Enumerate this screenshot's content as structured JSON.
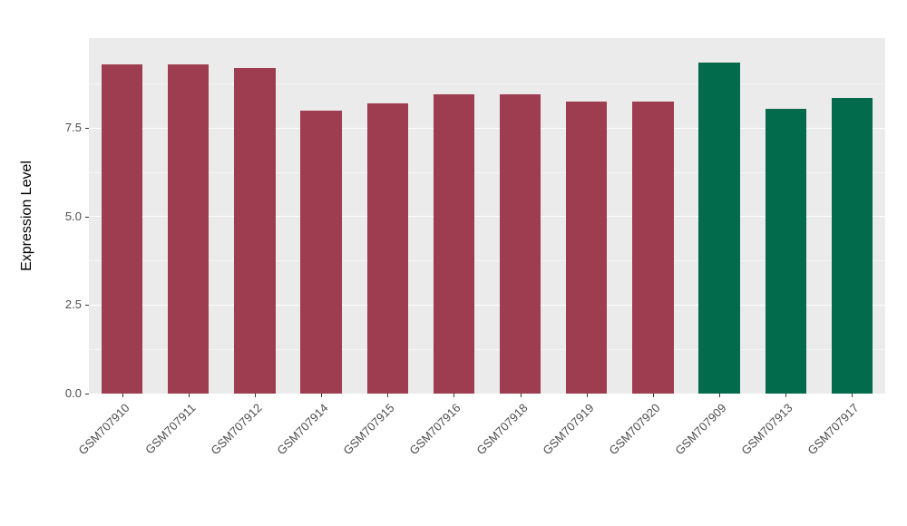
{
  "chart_data": {
    "type": "bar",
    "title": "",
    "xlabel": "",
    "ylabel": "Expression Level",
    "ylim": [
      0,
      10.05
    ],
    "yticks": [
      {
        "value": 0,
        "label": "0.0"
      },
      {
        "value": 2.5,
        "label": "2.5"
      },
      {
        "value": 5,
        "label": "5.0"
      },
      {
        "value": 7.5,
        "label": "7.5"
      }
    ],
    "grid": true,
    "legend": "none",
    "group_colors": {
      "group1": "#9e3d4f",
      "group2": "#026b4b"
    },
    "bars": [
      {
        "label": "GSM707910",
        "value": 9.3,
        "group": "group1"
      },
      {
        "label": "GSM707911",
        "value": 9.3,
        "group": "group1"
      },
      {
        "label": "GSM707912",
        "value": 9.2,
        "group": "group1"
      },
      {
        "label": "GSM707914",
        "value": 8.0,
        "group": "group1"
      },
      {
        "label": "GSM707915",
        "value": 8.2,
        "group": "group1"
      },
      {
        "label": "GSM707916",
        "value": 8.45,
        "group": "group1"
      },
      {
        "label": "GSM707918",
        "value": 8.45,
        "group": "group1"
      },
      {
        "label": "GSM707919",
        "value": 8.25,
        "group": "group1"
      },
      {
        "label": "GSM707920",
        "value": 8.25,
        "group": "group1"
      },
      {
        "label": "GSM707909",
        "value": 9.35,
        "group": "group2"
      },
      {
        "label": "GSM707913",
        "value": 8.05,
        "group": "group2"
      },
      {
        "label": "GSM707917",
        "value": 8.35,
        "group": "group2"
      }
    ]
  },
  "style": {
    "panel_bg": "#ebebeb",
    "grid_major": "#ffffff",
    "grid_minor": "rgba(255,255,255,0.55)",
    "tick_text": "#4d4d4d",
    "axis_title_color": "#000000",
    "tick_mark_color": "#333333"
  }
}
